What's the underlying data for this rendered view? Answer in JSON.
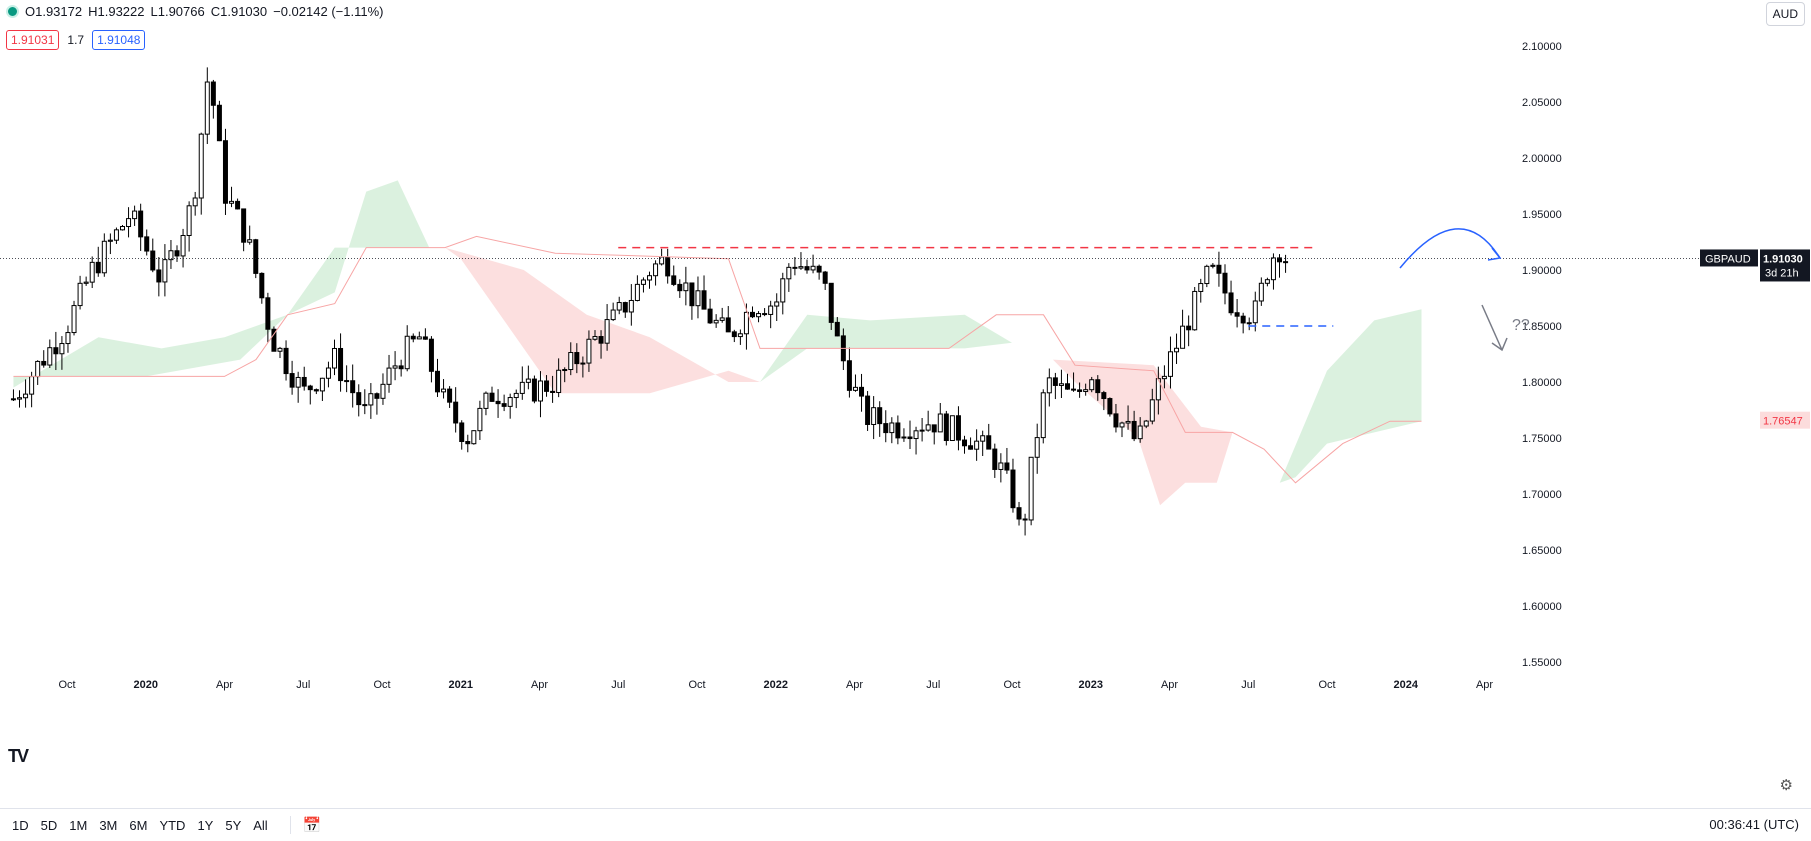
{
  "legend": {
    "open": "O1.93172",
    "high": "H1.93222",
    "low": "L1.90766",
    "close": "C1.91030",
    "change": "−0.02142 (−1.11%)"
  },
  "bid_price": "1.91031",
  "spread": "1.7",
  "ask_price": "1.91048",
  "currency": "AUD",
  "price_label": {
    "symbol": "GBPAUD",
    "price": "1.91030",
    "countdown": "3d 21h"
  },
  "cloud_label": "1.76547",
  "annotation": "??",
  "ranges": [
    "1D",
    "5D",
    "1M",
    "3M",
    "6M",
    "YTD",
    "1Y",
    "5Y",
    "All"
  ],
  "clock": "00:36:41 (UTC)",
  "icons": {
    "logo": "tradingview-logo",
    "calendar": "calendar-icon",
    "settings": "gear-icon",
    "status": "market-status-dot"
  },
  "colors": {
    "up": "#ffffff",
    "down": "#000000",
    "resistance": "#f23645",
    "support": "#2962ff",
    "cloud_bull": "#d7efdc",
    "cloud_bear": "#fcdcdc",
    "baseline": "#f7a5a5"
  },
  "chart_data": {
    "type": "candlestick",
    "symbol": "GBPAUD",
    "interval": "weekly",
    "ylim": [
      1.53,
      2.13
    ],
    "y_ticks": [
      "2.10000",
      "2.05000",
      "2.00000",
      "1.95000",
      "1.90000",
      "1.85000",
      "1.80000",
      "1.75000",
      "1.70000",
      "1.65000",
      "1.60000",
      "1.55000"
    ],
    "x_ticks": [
      "Oct",
      "2020",
      "Apr",
      "Jul",
      "Oct",
      "2021",
      "Apr",
      "Jul",
      "Oct",
      "2022",
      "Apr",
      "Jul",
      "Oct",
      "2023",
      "Apr",
      "Jul",
      "Oct",
      "2024",
      "Apr"
    ],
    "resistance_level": 1.92,
    "support_level": 1.85,
    "last_price": 1.9103,
    "cloud_level": 1.76547,
    "anchors": [
      [
        2019.58,
        1.785
      ],
      [
        2019.75,
        1.85
      ],
      [
        2019.83,
        1.9
      ],
      [
        2019.95,
        1.95
      ],
      [
        2020.05,
        1.89
      ],
      [
        2020.15,
        1.96
      ],
      [
        2020.2,
        2.08
      ],
      [
        2020.25,
        1.97
      ],
      [
        2020.32,
        1.93
      ],
      [
        2020.4,
        1.84
      ],
      [
        2020.5,
        1.79
      ],
      [
        2020.6,
        1.82
      ],
      [
        2020.7,
        1.77
      ],
      [
        2020.8,
        1.82
      ],
      [
        2020.87,
        1.84
      ],
      [
        2020.95,
        1.78
      ],
      [
        2021.02,
        1.75
      ],
      [
        2021.1,
        1.79
      ],
      [
        2021.2,
        1.79
      ],
      [
        2021.3,
        1.8
      ],
      [
        2021.4,
        1.83
      ],
      [
        2021.5,
        1.86
      ],
      [
        2021.6,
        1.9
      ],
      [
        2021.65,
        1.91
      ],
      [
        2021.75,
        1.87
      ],
      [
        2021.85,
        1.84
      ],
      [
        2021.93,
        1.87
      ],
      [
        2022.0,
        1.87
      ],
      [
        2022.05,
        1.91
      ],
      [
        2022.15,
        1.89
      ],
      [
        2022.2,
        1.83
      ],
      [
        2022.28,
        1.77
      ],
      [
        2022.38,
        1.76
      ],
      [
        2022.5,
        1.765
      ],
      [
        2022.62,
        1.75
      ],
      [
        2022.7,
        1.73
      ],
      [
        2022.75,
        1.7
      ],
      [
        2022.78,
        1.66
      ],
      [
        2022.82,
        1.74
      ],
      [
        2022.86,
        1.8
      ],
      [
        2022.95,
        1.785
      ],
      [
        2023.0,
        1.81
      ],
      [
        2023.08,
        1.77
      ],
      [
        2023.15,
        1.745
      ],
      [
        2023.22,
        1.8
      ],
      [
        2023.3,
        1.85
      ],
      [
        2023.38,
        1.9
      ],
      [
        2023.45,
        1.87
      ],
      [
        2023.52,
        1.86
      ],
      [
        2023.57,
        1.91
      ],
      [
        2023.6,
        1.92
      ],
      [
        2023.62,
        1.9103
      ]
    ]
  }
}
